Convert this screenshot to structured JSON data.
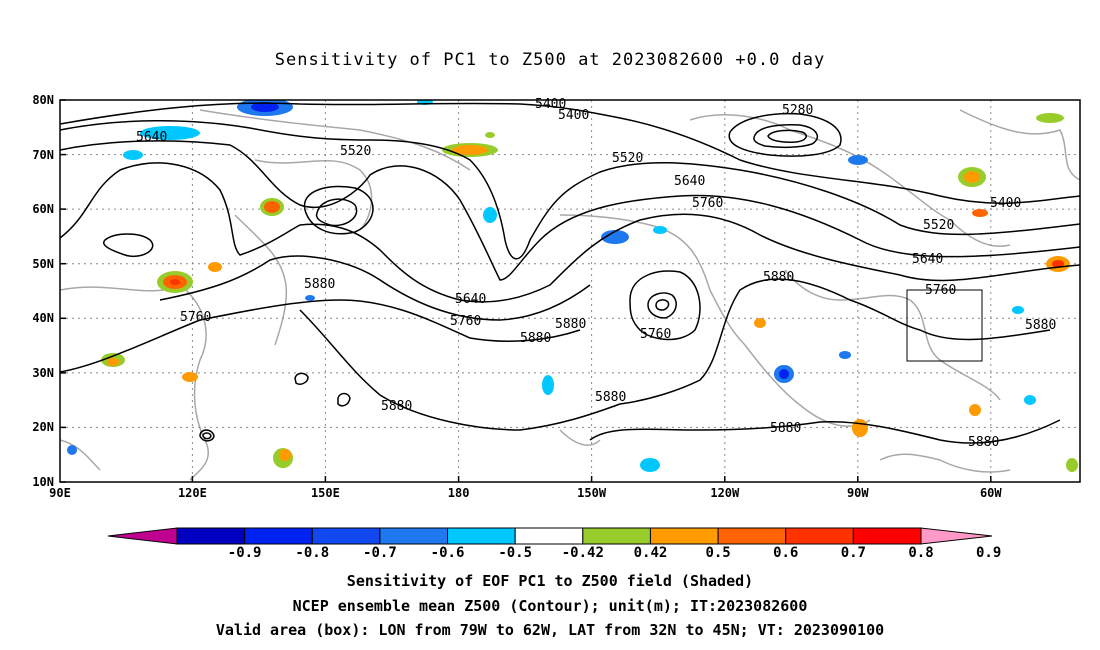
{
  "title": "Sensitivity of PC1 to Z500 at 2023082600 +0.0 day",
  "lat_labels": [
    "80N",
    "70N",
    "60N",
    "50N",
    "40N",
    "30N",
    "20N",
    "10N"
  ],
  "lon_labels": [
    "90E",
    "120E",
    "150E",
    "180",
    "150W",
    "120W",
    "90W",
    "60W"
  ],
  "contour_labels": [
    "5400",
    "5400",
    "5280",
    "5640",
    "5520",
    "5520",
    "5640",
    "5760",
    "5400",
    "5520",
    "5640",
    "5880",
    "5760",
    "5640",
    "5760",
    "5880",
    "5880",
    "5760",
    "5880",
    "5760",
    "5880",
    "5880",
    "5880",
    "5880",
    "5880"
  ],
  "colorbar": {
    "ticks": [
      "-0.9",
      "-0.8",
      "-0.7",
      "-0.6",
      "-0.5",
      "-0.42",
      "0.42",
      "0.5",
      "0.6",
      "0.7",
      "0.8",
      "0.9"
    ],
    "colors": [
      "#c00090",
      "#0000c0",
      "#0022f0",
      "#1248f0",
      "#1e78f0",
      "#00c8ff",
      "#ffffff",
      "#98cc2a",
      "#ff9a00",
      "#ff6400",
      "#ff3200",
      "#ff0000",
      "#ff9ac8"
    ]
  },
  "captions": [
    "Sensitivity of EOF PC1 to Z500 field (Shaded)",
    "NCEP ensemble mean Z500 (Contour); unit(m); IT:2023082600",
    "Valid area (box): LON from 79W to 62W, LAT from 32N to 45N; VT: 2023090100"
  ]
}
